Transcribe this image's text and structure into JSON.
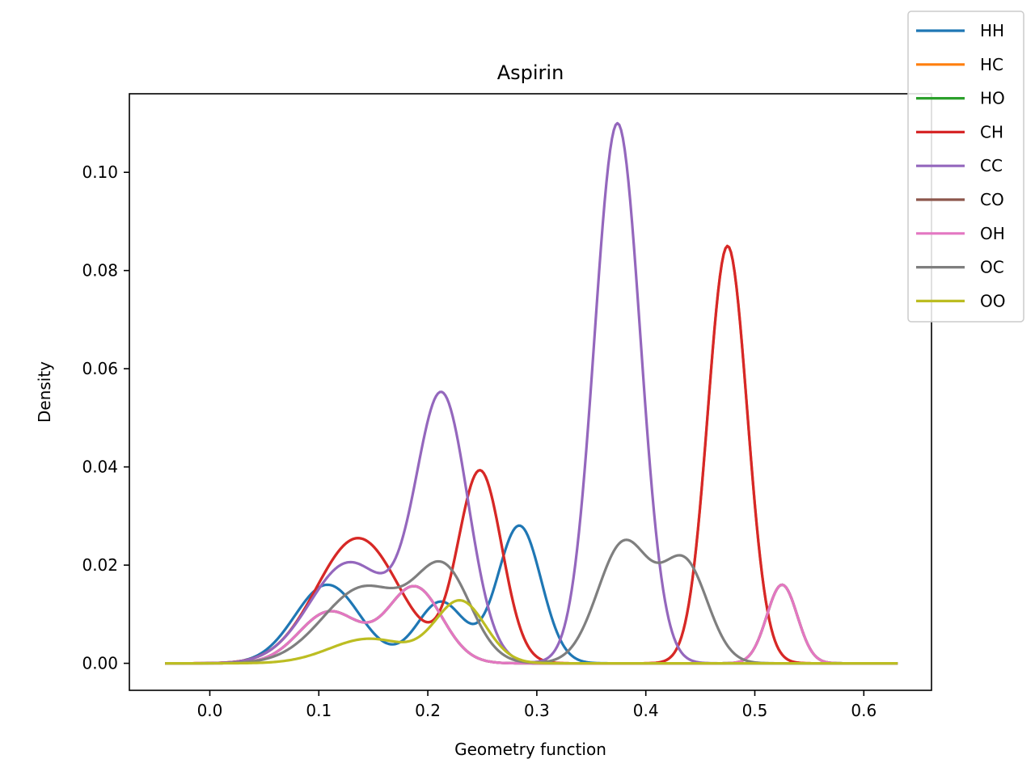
{
  "chart_data": {
    "type": "line",
    "title": "Aspirin",
    "xlabel": "Geometry function",
    "ylabel": "Density",
    "xlim": [
      -0.0738,
      0.6621
    ],
    "ylim": [
      -0.0055,
      0.116
    ],
    "xticks": [
      0.0,
      0.1,
      0.2,
      0.3,
      0.4,
      0.5,
      0.6
    ],
    "xtick_labels": [
      "0.0",
      "0.1",
      "0.2",
      "0.3",
      "0.4",
      "0.5",
      "0.6"
    ],
    "yticks": [
      0.0,
      0.02,
      0.04,
      0.06,
      0.08,
      0.1
    ],
    "ytick_labels": [
      "0.00",
      "0.02",
      "0.04",
      "0.06",
      "0.08",
      "0.10"
    ],
    "grid": false,
    "legend_placement": "top-right",
    "x_domain": [
      -0.041,
      0.631
    ],
    "series": [
      {
        "name": "HH",
        "color": "#1f77b4",
        "components": [
          [
            0.016,
            0.108,
            0.03
          ],
          [
            0.0125,
            0.212,
            0.022
          ],
          [
            0.028,
            0.284,
            0.02
          ]
        ]
      },
      {
        "name": "HC",
        "color": "#ff7f0e",
        "components": [
          [
            0.0255,
            0.136,
            0.038
          ],
          [
            0.039,
            0.248,
            0.02
          ],
          [
            0.085,
            0.475,
            0.018
          ]
        ]
      },
      {
        "name": "HO",
        "color": "#2ca02c",
        "components": [
          [
            0.0105,
            0.11,
            0.028
          ],
          [
            0.0155,
            0.188,
            0.025
          ],
          [
            0.016,
            0.525,
            0.014
          ]
        ]
      },
      {
        "name": "CH",
        "color": "#d62728",
        "components": [
          [
            0.0255,
            0.136,
            0.038
          ],
          [
            0.039,
            0.248,
            0.02
          ],
          [
            0.085,
            0.475,
            0.018
          ]
        ]
      },
      {
        "name": "CC",
        "color": "#9467bd",
        "components": [
          [
            0.0205,
            0.128,
            0.036
          ],
          [
            0.054,
            0.213,
            0.024
          ],
          [
            0.11,
            0.374,
            0.021
          ]
        ]
      },
      {
        "name": "CO",
        "color": "#8c564b",
        "components": [
          [
            0.0105,
            0.11,
            0.028
          ],
          [
            0.0155,
            0.188,
            0.025
          ],
          [
            0.016,
            0.525,
            0.014
          ]
        ]
      },
      {
        "name": "OH",
        "color": "#e377c2",
        "components": [
          [
            0.0105,
            0.11,
            0.028
          ],
          [
            0.0155,
            0.188,
            0.025
          ],
          [
            0.016,
            0.525,
            0.014
          ]
        ]
      },
      {
        "name": "OC",
        "color": "#7f7f7f",
        "components": [
          [
            0.0155,
            0.142,
            0.038
          ],
          [
            0.018,
            0.215,
            0.025
          ],
          [
            0.0245,
            0.38,
            0.024
          ],
          [
            0.02,
            0.436,
            0.021
          ]
        ]
      },
      {
        "name": "OO",
        "color": "#bcbd22",
        "components": [
          [
            0.005,
            0.146,
            0.036
          ],
          [
            0.0125,
            0.23,
            0.023
          ]
        ]
      }
    ]
  }
}
